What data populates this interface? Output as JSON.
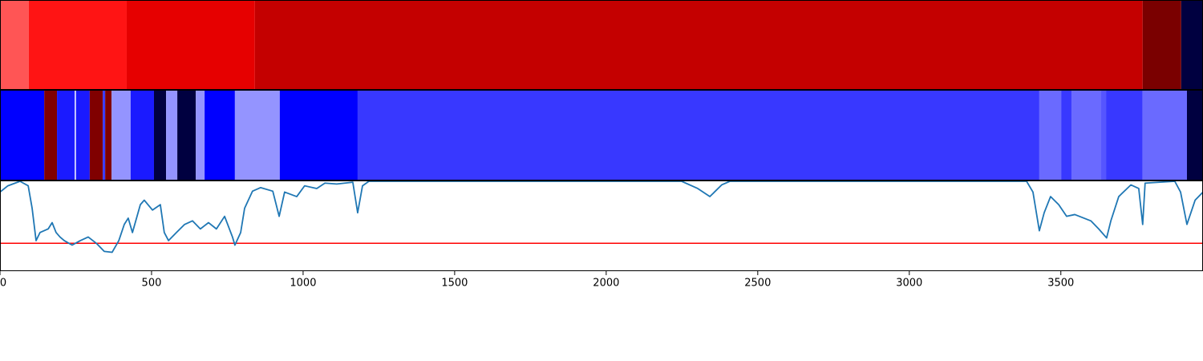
{
  "chart_data": [
    {
      "type": "segments",
      "xlim": [
        0,
        3969
      ],
      "edges": [
        0,
        95,
        418,
        841,
        3770,
        3897,
        3969
      ],
      "colors": [
        "#ff5555",
        "#ff1414",
        "#e60000",
        "#c40000",
        "#7a0000",
        "#000040"
      ]
    },
    {
      "type": "segments",
      "xlim": [
        0,
        3969
      ],
      "edges": [
        0,
        146,
        188,
        246,
        251,
        296,
        339,
        347,
        368,
        431,
        508,
        548,
        585,
        646,
        675,
        775,
        923,
        1180,
        3429,
        3501,
        3535,
        3633,
        3649,
        3770,
        3916,
        3969
      ],
      "colors": [
        "#0000ff",
        "#800000",
        "#1a1aff",
        "#ccccff",
        "#1a1aff",
        "#800000",
        "#3838ff",
        "#800000",
        "#9494ff",
        "#1a1aff",
        "#000040",
        "#9494ff",
        "#000040",
        "#9494ff",
        "#0000ff",
        "#9494ff",
        "#0000ff",
        "#3838ff",
        "#6a6aff",
        "#3838ff",
        "#6a6aff",
        "#5555ff",
        "#3838ff",
        "#6a6aff",
        "#000040"
      ]
    },
    {
      "type": "line",
      "xlim": [
        0,
        3969
      ],
      "ylim": [
        0,
        1
      ],
      "xticks": [
        0,
        500,
        1000,
        1500,
        2000,
        2500,
        3000,
        3500
      ],
      "color": "#1f77b4",
      "threshold": {
        "value": 0.31,
        "color": "#ff0000"
      },
      "x": [
        0,
        26,
        66,
        93,
        106,
        119,
        132,
        159,
        172,
        185,
        198,
        212,
        238,
        265,
        291,
        318,
        344,
        370,
        392,
        410,
        423,
        437,
        463,
        476,
        503,
        529,
        542,
        556,
        582,
        609,
        635,
        661,
        688,
        714,
        741,
        767,
        775,
        794,
        807,
        833,
        860,
        900,
        921,
        939,
        979,
        1005,
        1045,
        1072,
        1111,
        1164,
        1180,
        1196,
        1217,
        1588,
        2249,
        2302,
        2342,
        2381,
        2408,
        3387,
        3408,
        3429,
        3445,
        3466,
        3493,
        3519,
        3546,
        3599,
        3625,
        3651,
        3665,
        3691,
        3731,
        3757,
        3770,
        3778,
        3876,
        3895,
        3916,
        3929,
        3943,
        3969
      ],
      "values": [
        0.88,
        0.95,
        1.0,
        0.95,
        0.7,
        0.34,
        0.43,
        0.47,
        0.54,
        0.43,
        0.38,
        0.34,
        0.29,
        0.34,
        0.38,
        0.31,
        0.22,
        0.21,
        0.34,
        0.52,
        0.59,
        0.43,
        0.74,
        0.79,
        0.68,
        0.74,
        0.43,
        0.34,
        0.43,
        0.52,
        0.56,
        0.47,
        0.54,
        0.47,
        0.61,
        0.38,
        0.29,
        0.43,
        0.7,
        0.89,
        0.93,
        0.89,
        0.61,
        0.88,
        0.83,
        0.95,
        0.92,
        0.98,
        0.97,
        0.99,
        0.65,
        0.95,
        1.0,
        1.0,
        1.0,
        0.92,
        0.83,
        0.96,
        1.0,
        1.0,
        0.88,
        0.45,
        0.65,
        0.83,
        0.74,
        0.61,
        0.63,
        0.56,
        0.47,
        0.37,
        0.56,
        0.83,
        0.96,
        0.92,
        0.52,
        0.98,
        1.0,
        0.88,
        0.52,
        0.65,
        0.79,
        0.88
      ]
    }
  ]
}
